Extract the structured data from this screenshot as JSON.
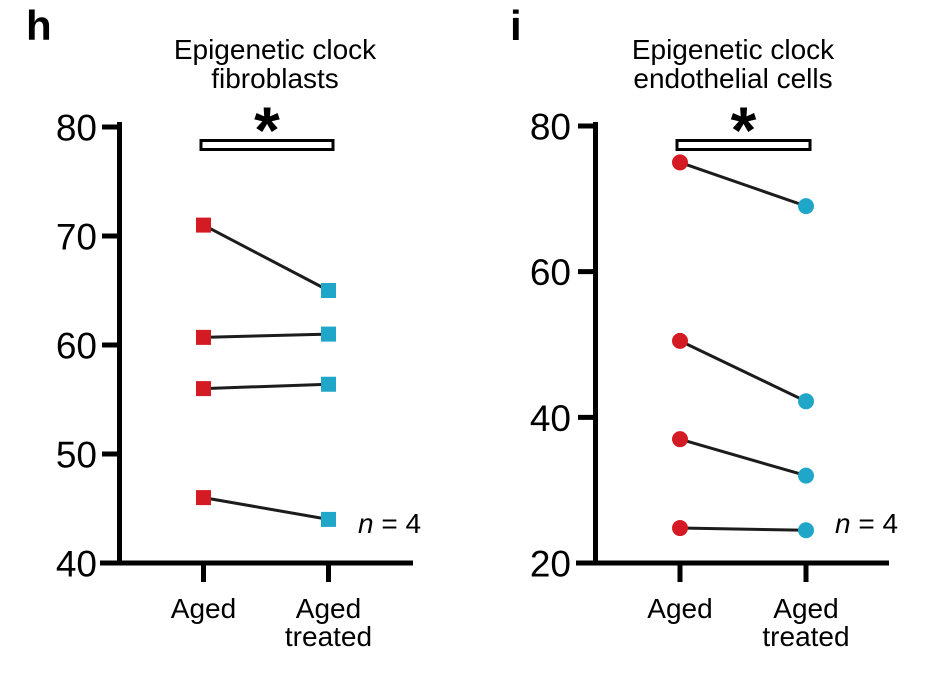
{
  "colors": {
    "aged_marker": "#d41b24",
    "treated_marker": "#1fa6c8",
    "connector_line": "#1c1c1c",
    "axis": "#000000",
    "background": "#ffffff",
    "bracket_fill": "#ffffff"
  },
  "chart_data": [
    {
      "id": "h",
      "type": "line",
      "subtype": "paired-dot-plot",
      "panel_label": "h",
      "title": "Epigenetic clock fibroblasts",
      "title_lines": [
        "Epigenetic clock",
        "fibroblasts"
      ],
      "categories": [
        "Aged",
        "Aged treated"
      ],
      "category_lines": [
        [
          "Aged"
        ],
        [
          "Aged",
          "treated"
        ]
      ],
      "marker_shape": "square",
      "marker_colors": [
        "#d41b24",
        "#1fa6c8"
      ],
      "ylim": [
        40,
        80
      ],
      "yticks": [
        40,
        50,
        60,
        70,
        80
      ],
      "pairs": [
        [
          71,
          65
        ],
        [
          60.7,
          61
        ],
        [
          56,
          56.4
        ],
        [
          46,
          44
        ]
      ],
      "significance_label": "*",
      "n_annotation": {
        "prefix_italic": "n",
        "rest": " = 4"
      },
      "legend": "none",
      "grid": false
    },
    {
      "id": "i",
      "type": "line",
      "subtype": "paired-dot-plot",
      "panel_label": "i",
      "title": "Epigenetic clock endothelial cells",
      "title_lines": [
        "Epigenetic clock",
        "endothelial cells"
      ],
      "categories": [
        "Aged",
        "Aged treated"
      ],
      "category_lines": [
        [
          "Aged"
        ],
        [
          "Aged",
          "treated"
        ]
      ],
      "marker_shape": "circle",
      "marker_colors": [
        "#d41b24",
        "#1fa6c8"
      ],
      "ylim": [
        20,
        80
      ],
      "yticks": [
        20,
        40,
        60,
        80
      ],
      "pairs": [
        [
          75,
          69
        ],
        [
          50.5,
          42.2
        ],
        [
          37,
          32
        ],
        [
          24.8,
          24.5
        ]
      ],
      "significance_label": "*",
      "n_annotation": {
        "prefix_italic": "n",
        "rest": " = 4"
      },
      "legend": "none",
      "grid": false
    }
  ]
}
